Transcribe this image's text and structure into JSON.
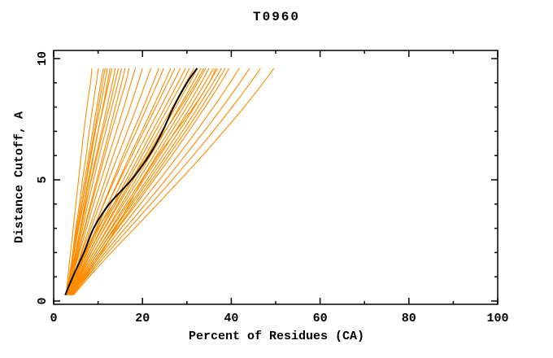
{
  "chart_data": {
    "type": "line",
    "title": "T0960",
    "xlabel": "Percent of Residues (CA)",
    "ylabel": "Distance Cutoff, A",
    "xlim": [
      0,
      100
    ],
    "ylim": [
      0,
      10
    ],
    "x_major_ticks": [
      0,
      20,
      40,
      60,
      80,
      100
    ],
    "x_minor_ticks": [
      10,
      30,
      50,
      70,
      90
    ],
    "y_major_ticks": [
      0,
      5,
      10
    ],
    "y_minor_ticks": [
      1,
      2,
      3,
      4,
      6,
      7,
      8,
      9
    ],
    "grid": false,
    "legend": "none",
    "colors": {
      "model_lines": "#FF8C00",
      "highlight_line": "#000000",
      "axis": "#000000",
      "background": "#FFFFFF"
    },
    "y_levels": [
      0.25,
      1,
      2,
      3,
      4,
      5,
      6,
      7,
      8,
      9,
      9.6
    ],
    "orange_models": [
      [
        2.8,
        3.2,
        3.8,
        4.4,
        5.0,
        5.6,
        6.2,
        6.8,
        7.5,
        8.3,
        8.6
      ],
      [
        3.0,
        3.6,
        4.3,
        5.0,
        5.8,
        6.5,
        7.3,
        8.0,
        8.8,
        9.6,
        10.1
      ],
      [
        2.8,
        3.5,
        4.4,
        5.2,
        6.1,
        7.0,
        7.9,
        8.8,
        9.7,
        10.6,
        11.2
      ],
      [
        3.1,
        3.8,
        4.6,
        5.5,
        6.4,
        7.3,
        8.2,
        9.2,
        10.1,
        11.0,
        11.6
      ],
      [
        3.0,
        3.7,
        4.5,
        5.4,
        6.4,
        7.4,
        8.4,
        9.4,
        10.5,
        11.5,
        12.1
      ],
      [
        3.2,
        4.0,
        5.0,
        6.0,
        7.0,
        8.0,
        9.0,
        10.0,
        11.1,
        12.1,
        12.7
      ],
      [
        2.9,
        3.6,
        4.6,
        5.6,
        6.7,
        7.8,
        8.9,
        10.0,
        11.2,
        12.4,
        13.1
      ],
      [
        3.1,
        4.0,
        5.1,
        6.2,
        7.3,
        8.4,
        9.6,
        10.8,
        12.0,
        13.2,
        13.9
      ],
      [
        3.0,
        3.8,
        4.9,
        6.0,
        7.2,
        8.5,
        9.8,
        11.1,
        12.5,
        13.8,
        14.6
      ],
      [
        3.3,
        4.2,
        5.3,
        6.5,
        7.7,
        9.0,
        10.3,
        11.7,
        13.1,
        14.5,
        15.3
      ],
      [
        3.0,
        4.1,
        5.5,
        6.9,
        8.3,
        9.7,
        11.1,
        12.5,
        13.9,
        15.3,
        16.1
      ],
      [
        3.2,
        4.3,
        5.6,
        7.0,
        8.5,
        10.0,
        11.5,
        13.0,
        14.6,
        16.2,
        17.0
      ],
      [
        3.1,
        4.2,
        5.8,
        7.4,
        9.0,
        10.7,
        12.4,
        14.1,
        15.8,
        17.4,
        18.4
      ],
      [
        3.4,
        4.6,
        6.2,
        8.0,
        9.8,
        11.6,
        13.4,
        15.3,
        17.2,
        19.0,
        20.0
      ],
      [
        3.2,
        4.5,
        6.4,
        8.4,
        10.4,
        12.4,
        14.5,
        16.6,
        18.7,
        20.7,
        21.9
      ],
      [
        3.5,
        5.0,
        7.0,
        9.0,
        11.2,
        13.4,
        15.6,
        17.9,
        20.2,
        22.4,
        23.7
      ],
      [
        3.3,
        4.8,
        6.8,
        9.0,
        11.3,
        13.7,
        16.1,
        18.6,
        21.0,
        23.4,
        24.8
      ],
      [
        3.6,
        5.2,
        7.4,
        9.8,
        12.2,
        14.7,
        17.2,
        19.8,
        22.4,
        24.9,
        26.4
      ],
      [
        3.4,
        5.0,
        7.2,
        9.6,
        12.2,
        14.9,
        17.6,
        20.3,
        23.0,
        25.7,
        27.3
      ],
      [
        3.5,
        5.2,
        7.6,
        10.2,
        12.9,
        15.7,
        18.5,
        21.3,
        24.1,
        26.9,
        28.5
      ],
      [
        3.7,
        5.5,
        8.0,
        10.7,
        13.5,
        16.4,
        19.3,
        22.2,
        25.1,
        28.0,
        29.7
      ],
      [
        3.5,
        5.4,
        8.0,
        10.9,
        13.9,
        16.9,
        19.9,
        22.9,
        25.9,
        28.9,
        30.6
      ],
      [
        3.8,
        5.8,
        8.5,
        11.4,
        14.4,
        17.5,
        20.6,
        23.7,
        26.8,
        29.8,
        31.6
      ],
      [
        3.6,
        5.6,
        8.4,
        11.5,
        14.7,
        17.9,
        21.1,
        24.3,
        27.5,
        30.6,
        32.4
      ],
      [
        3.9,
        6.0,
        9.0,
        12.1,
        15.3,
        18.5,
        21.8,
        25.1,
        28.3,
        31.4,
        33.2
      ],
      [
        3.4,
        4.8,
        7.0,
        10.0,
        13.5,
        17.3,
        21.2,
        25.0,
        28.6,
        32.0,
        33.8
      ],
      [
        3.7,
        5.9,
        9.0,
        12.3,
        15.7,
        19.1,
        22.5,
        25.9,
        29.2,
        32.4,
        34.2
      ],
      [
        4.0,
        6.3,
        9.5,
        12.9,
        16.3,
        19.8,
        23.2,
        26.6,
        30.0,
        33.2,
        35.0
      ],
      [
        3.8,
        6.2,
        9.5,
        13.1,
        16.7,
        20.3,
        23.9,
        27.4,
        30.8,
        34.1,
        36.0
      ],
      [
        4.4,
        7.2,
        10.8,
        14.0,
        17.0,
        20.0,
        23.5,
        27.5,
        31.5,
        35.0,
        36.5
      ],
      [
        4.1,
        6.6,
        10.0,
        13.6,
        17.3,
        21.0,
        24.6,
        28.2,
        31.7,
        35.0,
        36.9
      ],
      [
        3.9,
        6.5,
        10.0,
        13.8,
        17.7,
        21.5,
        25.3,
        29.0,
        32.5,
        35.9,
        37.8
      ],
      [
        4.2,
        6.9,
        10.5,
        14.3,
        18.2,
        22.1,
        25.9,
        29.7,
        33.3,
        36.7,
        38.6
      ],
      [
        4.0,
        6.8,
        10.5,
        14.5,
        18.6,
        22.6,
        26.6,
        30.4,
        34.1,
        37.6,
        39.5
      ],
      [
        4.1,
        7.0,
        11.0,
        15.2,
        19.5,
        23.8,
        28.0,
        32.1,
        36.0,
        39.7,
        41.8
      ],
      [
        4.3,
        7.4,
        11.6,
        16.1,
        20.7,
        25.2,
        29.6,
        33.9,
        38.0,
        41.9,
        44.1
      ],
      [
        4.2,
        7.6,
        12.2,
        17.0,
        21.9,
        26.7,
        31.4,
        35.9,
        40.2,
        44.3,
        46.6
      ],
      [
        4.5,
        8.0,
        13.0,
        18.2,
        23.4,
        28.5,
        33.5,
        38.3,
        42.9,
        47.2,
        49.6
      ]
    ],
    "black_model": [
      2.6,
      4.3,
      6.8,
      9.0,
      12.5,
      17.5,
      21.5,
      24.5,
      27.0,
      30.0,
      32.3
    ]
  }
}
